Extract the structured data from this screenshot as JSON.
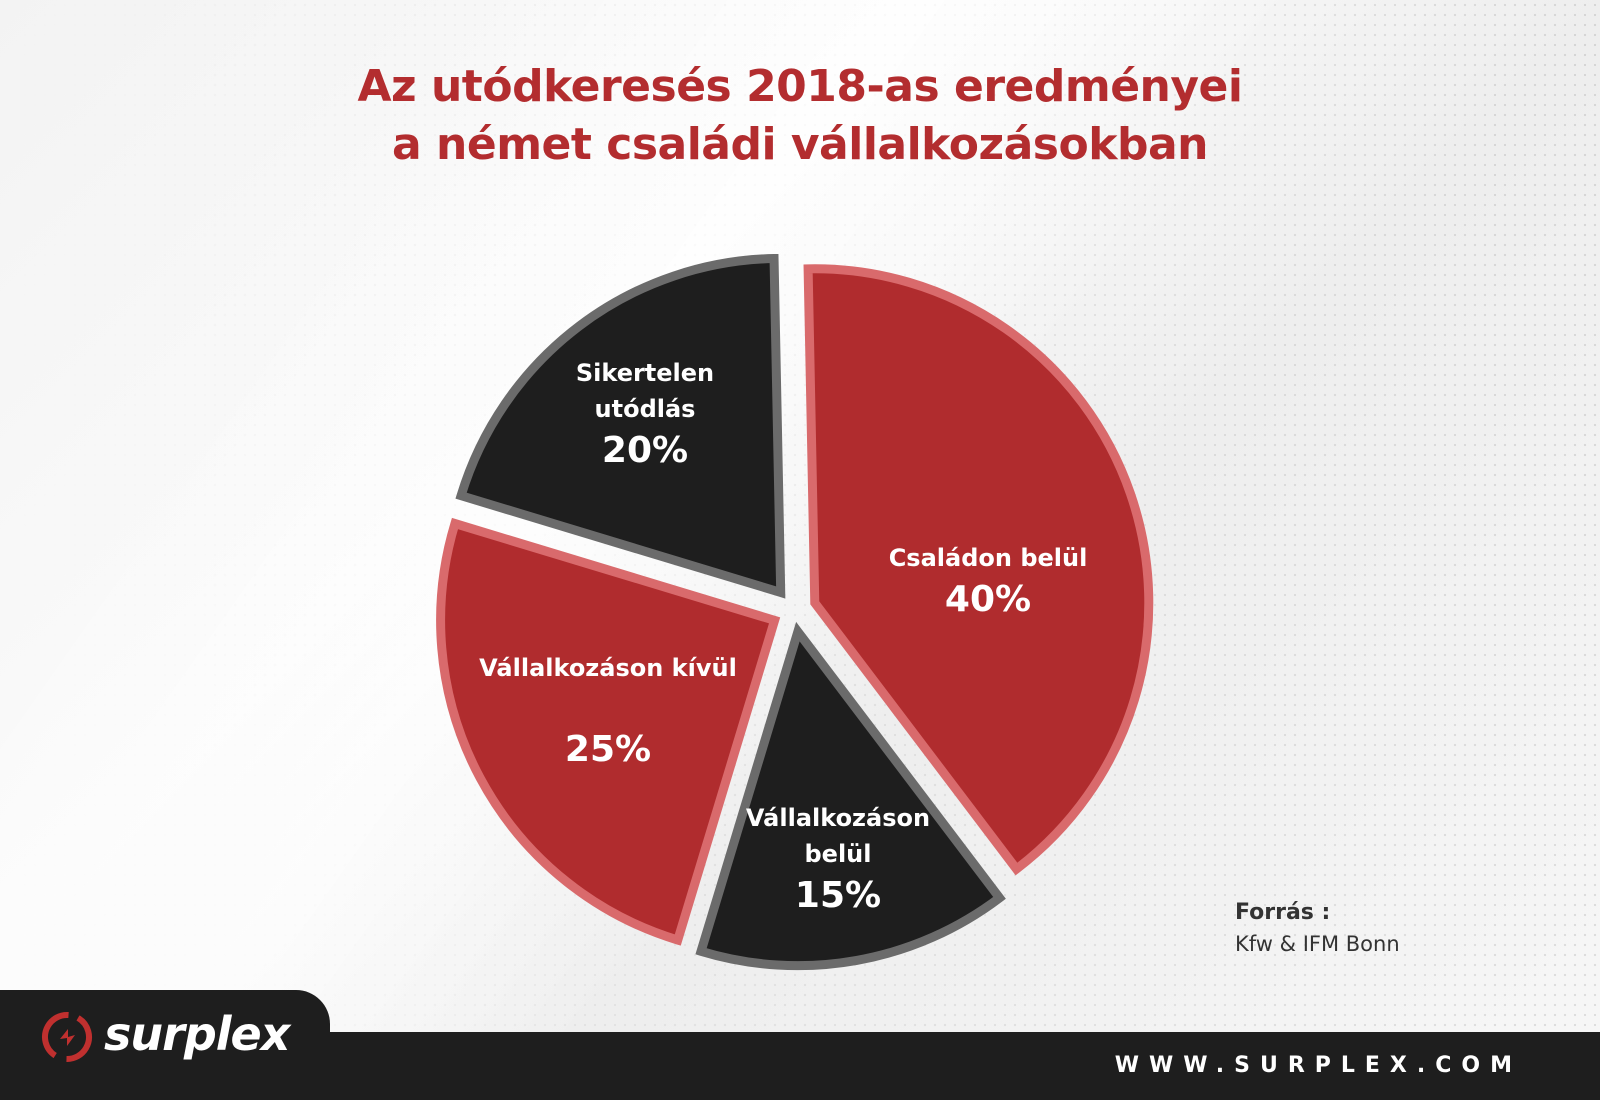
{
  "title_line1": "Az utódkeresés 2018-as eredményei",
  "title_line2": "a német családi vállalkozásokban",
  "chart_data": {
    "type": "pie",
    "title": "Az utódkeresés 2018-as eredményei a német családi vállalkozásokban",
    "slices": [
      {
        "label": "Családon belül",
        "value": 40,
        "display": "40%",
        "color": "#b02c2e",
        "stroke": "#d96a6c"
      },
      {
        "label": "Vállalkozáson belül",
        "value": 15,
        "display": "15%",
        "color": "#1e1e1e",
        "stroke": "#6b6b6b"
      },
      {
        "label": "Vállalkozáson kívül",
        "value": 25,
        "display": "25%",
        "color": "#b02c2e",
        "stroke": "#d96a6c"
      },
      {
        "label": "Sikertelen utódlás",
        "value": 20,
        "display": "20%",
        "color": "#1e1e1e",
        "stroke": "#6b6b6b"
      }
    ]
  },
  "labels": {
    "csaladon_title": "Családon belül",
    "csaladon_pct": "40%",
    "vall_belul_line1": "Vállalkozáson",
    "vall_belul_line2": "belül",
    "vall_belul_pct": "15%",
    "vall_kivul_title": "Vállalkozáson kívül",
    "vall_kivul_pct": "25%",
    "sikertelen_line1": "Sikertelen",
    "sikertelen_line2": "utódlás",
    "sikertelen_pct": "20%"
  },
  "source": {
    "heading": "Forrás :",
    "value": "Kfw & IFM Bonn"
  },
  "brand": {
    "logo_text": "surplex",
    "logo_icon": "surplex-circle-icon",
    "url": "WWW.SURPLEX.COM"
  }
}
